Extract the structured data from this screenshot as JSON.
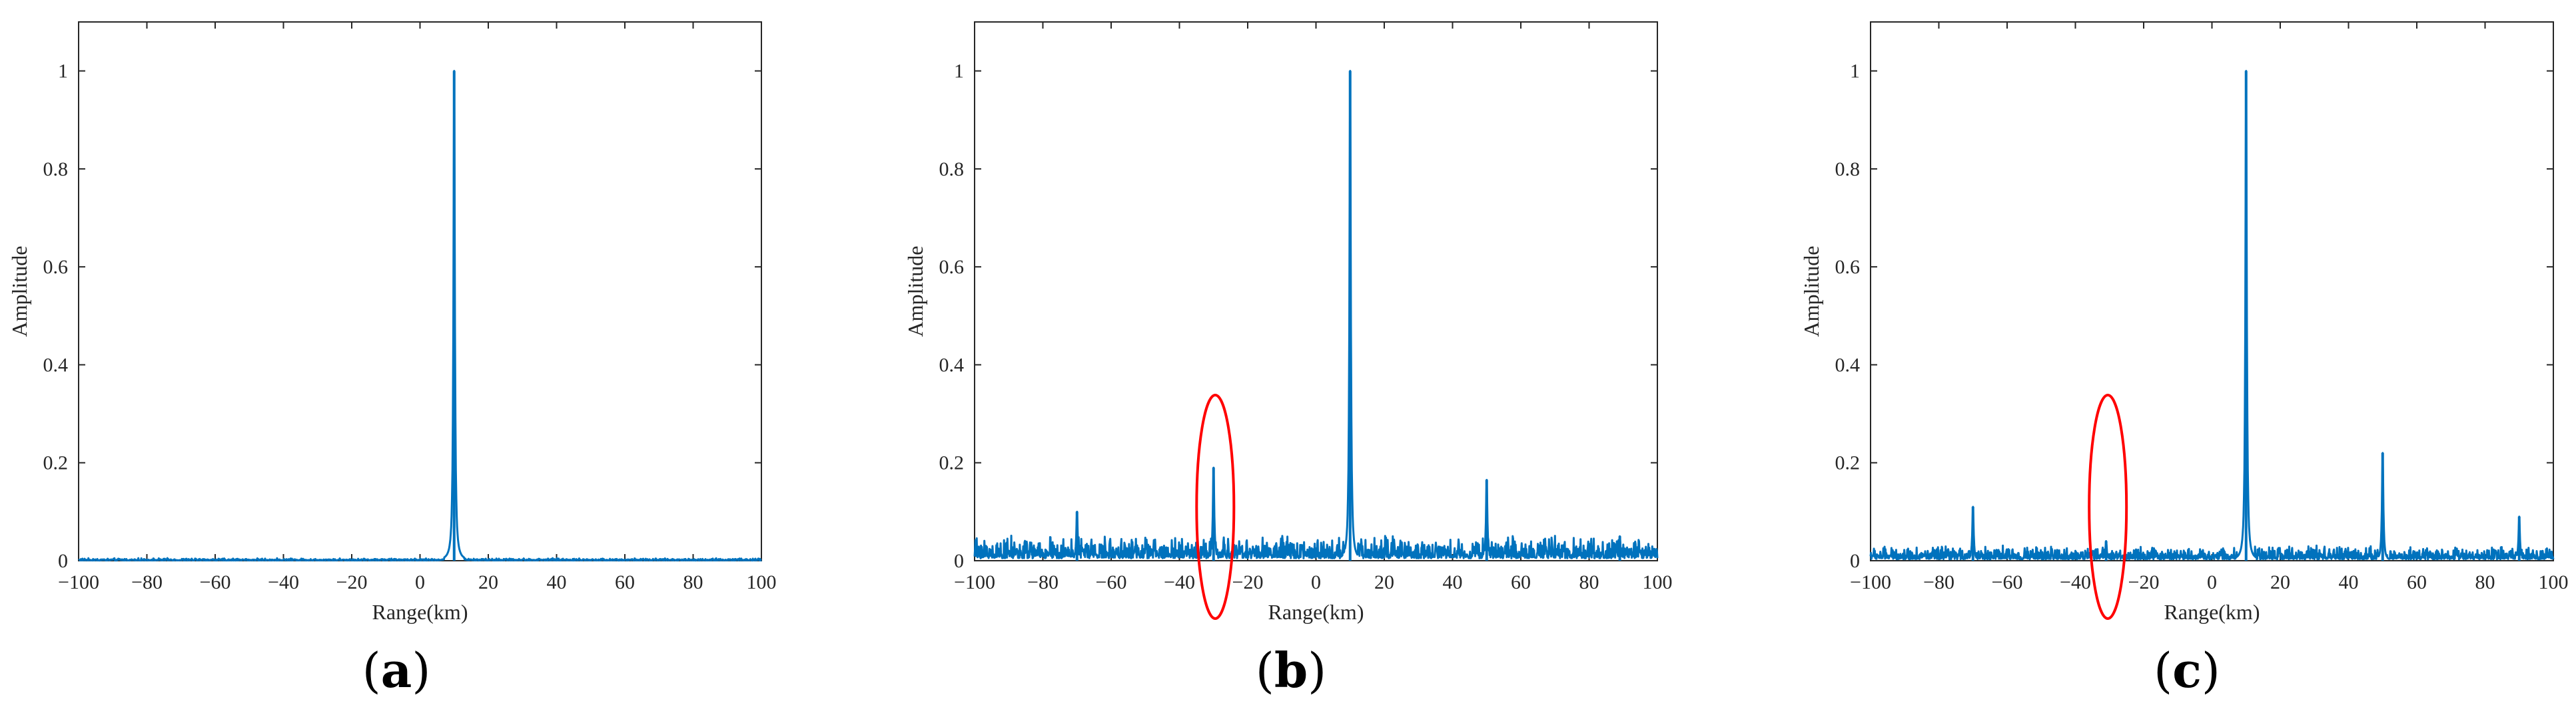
{
  "chart_data": [
    {
      "type": "line",
      "panel_label": "a",
      "xlabel": "Range(km)",
      "ylabel": "Amplitude",
      "xlim": [
        -100,
        100
      ],
      "ylim": [
        0,
        1.1
      ],
      "xticks": [
        "−100",
        "−80",
        "−60",
        "−40",
        "−20",
        "0",
        "20",
        "40",
        "60",
        "80",
        "100"
      ],
      "yticks": [
        "0",
        "0.2",
        "0.4",
        "0.6",
        "0.8",
        "1"
      ],
      "grid": false,
      "line_color": "#0072BD",
      "noise_level": 0.002,
      "peaks": [
        {
          "x": 10,
          "y": 1.0
        }
      ],
      "highlight_ellipse": null
    },
    {
      "type": "line",
      "panel_label": "b",
      "xlabel": "Range(km)",
      "ylabel": "Amplitude",
      "xlim": [
        -100,
        100
      ],
      "ylim": [
        0,
        1.1
      ],
      "xticks": [
        "−100",
        "−80",
        "−60",
        "−40",
        "−20",
        "0",
        "20",
        "40",
        "60",
        "80",
        "100"
      ],
      "yticks": [
        "0",
        "0.2",
        "0.4",
        "0.6",
        "0.8",
        "1"
      ],
      "grid": false,
      "line_color": "#0072BD",
      "noise_level": 0.02,
      "peaks": [
        {
          "x": -70,
          "y": 0.1
        },
        {
          "x": -30,
          "y": 0.19
        },
        {
          "x": 10,
          "y": 1.0
        },
        {
          "x": 50,
          "y": 0.165
        },
        {
          "x": 89,
          "y": 0.05
        }
      ],
      "highlight_ellipse": {
        "x": -29.5,
        "y": 0.11,
        "color": "#ff0000"
      }
    },
    {
      "type": "line",
      "panel_label": "c",
      "xlabel": "Range(km)",
      "ylabel": "Amplitude",
      "xlim": [
        -100,
        100
      ],
      "ylim": [
        0,
        1.1
      ],
      "xticks": [
        "−100",
        "−80",
        "−60",
        "−40",
        "−20",
        "0",
        "20",
        "40",
        "60",
        "80",
        "100"
      ],
      "yticks": [
        "0",
        "0.2",
        "0.4",
        "0.6",
        "0.8",
        "1"
      ],
      "grid": false,
      "line_color": "#0072BD",
      "noise_level": 0.012,
      "peaks": [
        {
          "x": -70,
          "y": 0.11
        },
        {
          "x": -31,
          "y": 0.04
        },
        {
          "x": 10,
          "y": 1.0
        },
        {
          "x": 50,
          "y": 0.22
        },
        {
          "x": 90,
          "y": 0.09
        }
      ],
      "highlight_ellipse": {
        "x": -30.5,
        "y": 0.11,
        "color": "#ff0000"
      }
    }
  ],
  "captions": {
    "a": {
      "open": "(",
      "letter": "a",
      "close": ")"
    },
    "b": {
      "open": "(",
      "letter": "b",
      "close": ")"
    },
    "c": {
      "open": "(",
      "letter": "c",
      "close": ")"
    }
  }
}
